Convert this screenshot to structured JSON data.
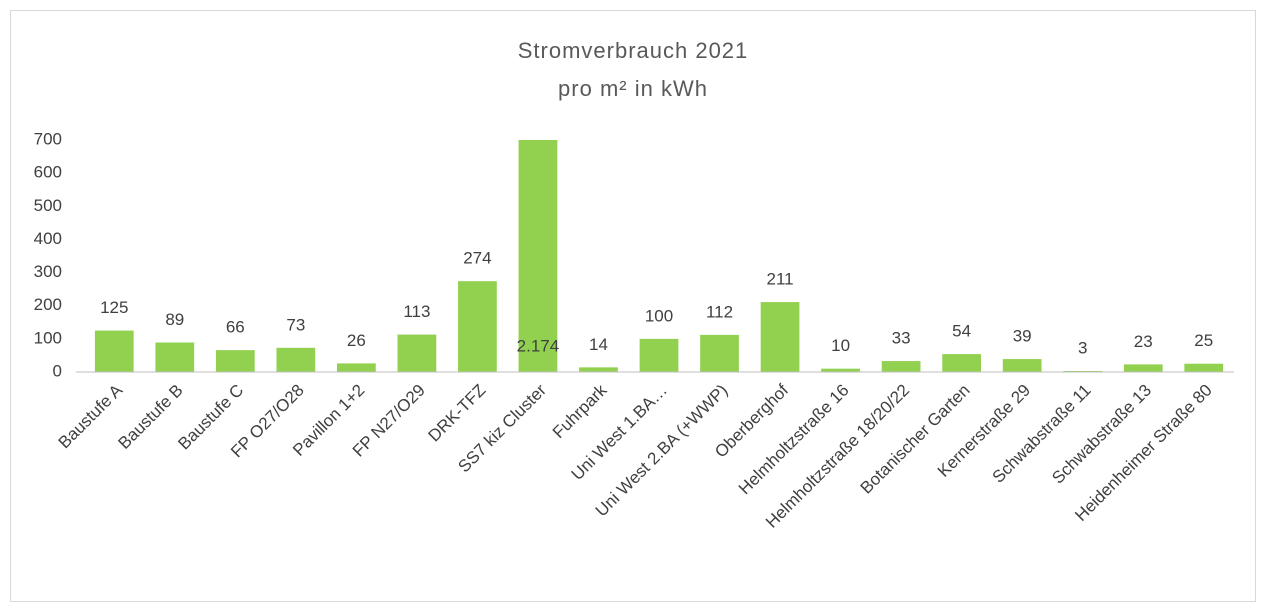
{
  "chart_data": {
    "type": "bar",
    "title": "Stromverbrauch 2021",
    "subtitle": "pro m² in kWh",
    "categories": [
      "Baustufe A",
      "Baustufe B",
      "Baustufe C",
      "FP O27/O28",
      "Pavillon 1+2",
      "FP N27/O29",
      "DRK-TFZ",
      "SS7 kiz Cluster",
      "Fuhrpark",
      "Uni West 1.BA…",
      "Uni West 2.BA (+WWP)",
      "Oberberghof",
      "Helmholtzstraße 16",
      "Helmholtzstraße 18/20/22",
      "Botanischer Garten",
      "Kernerstraße 29",
      "Schwabstraße 11",
      "Schwabstraße 13",
      "Heidenheimer Straße 80"
    ],
    "values": [
      125,
      89,
      66,
      73,
      26,
      113,
      274,
      2174,
      14,
      100,
      112,
      211,
      10,
      33,
      54,
      39,
      3,
      23,
      25
    ],
    "value_labels": [
      "125",
      "89",
      "66",
      "73",
      "26",
      "113",
      "274",
      "2.174",
      "14",
      "100",
      "112",
      "211",
      "10",
      "33",
      "54",
      "39",
      "3",
      "23",
      "25"
    ],
    "color": "#92d050",
    "ylim": [
      0,
      700
    ],
    "yticks": [
      0,
      100,
      200,
      300,
      400,
      500,
      600,
      700
    ],
    "grid": false
  }
}
